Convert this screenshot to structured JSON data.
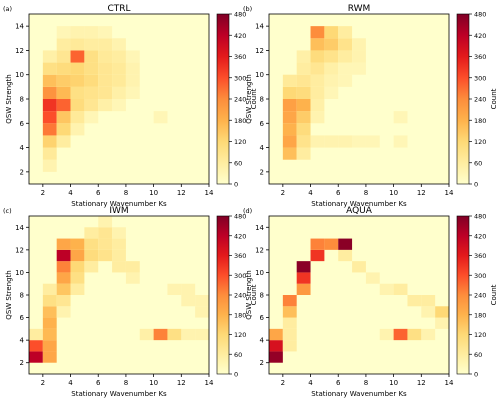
{
  "chart_data": [
    {
      "type": "heatmap",
      "panel_label": "(a)",
      "title": "CTRL",
      "xlabel": "Stationary Wavenumber Ks",
      "ylabel": "QSW Strength",
      "xticks": [
        2,
        4,
        6,
        8,
        10,
        12,
        14
      ],
      "yticks": [
        2,
        4,
        6,
        8,
        10,
        12,
        14
      ],
      "xlim": [
        1,
        14
      ],
      "ylim": [
        1,
        15
      ],
      "colorbar": {
        "label": "Count",
        "ticks": [
          0,
          60,
          120,
          180,
          240,
          300,
          360,
          420,
          480
        ],
        "range": [
          0,
          480
        ]
      },
      "cells": [
        {
          "x": 2,
          "y": 2,
          "v": 40
        },
        {
          "x": 2,
          "y": 3,
          "v": 70
        },
        {
          "x": 2,
          "y": 4,
          "v": 130
        },
        {
          "x": 3,
          "y": 4,
          "v": 60
        },
        {
          "x": 2,
          "y": 5,
          "v": 260
        },
        {
          "x": 3,
          "y": 5,
          "v": 120
        },
        {
          "x": 4,
          "y": 5,
          "v": 40
        },
        {
          "x": 2,
          "y": 6,
          "v": 300
        },
        {
          "x": 3,
          "y": 6,
          "v": 150
        },
        {
          "x": 4,
          "y": 6,
          "v": 70
        },
        {
          "x": 5,
          "y": 6,
          "v": 30
        },
        {
          "x": 2,
          "y": 7,
          "v": 330
        },
        {
          "x": 3,
          "y": 7,
          "v": 280
        },
        {
          "x": 4,
          "y": 7,
          "v": 110
        },
        {
          "x": 5,
          "y": 7,
          "v": 80
        },
        {
          "x": 6,
          "y": 7,
          "v": 50
        },
        {
          "x": 7,
          "y": 7,
          "v": 30
        },
        {
          "x": 10,
          "y": 6,
          "v": 30
        },
        {
          "x": 2,
          "y": 8,
          "v": 230
        },
        {
          "x": 3,
          "y": 8,
          "v": 170
        },
        {
          "x": 4,
          "y": 8,
          "v": 100
        },
        {
          "x": 5,
          "y": 8,
          "v": 90
        },
        {
          "x": 6,
          "y": 8,
          "v": 80
        },
        {
          "x": 7,
          "y": 8,
          "v": 50
        },
        {
          "x": 8,
          "y": 8,
          "v": 30
        },
        {
          "x": 2,
          "y": 9,
          "v": 160
        },
        {
          "x": 3,
          "y": 9,
          "v": 140
        },
        {
          "x": 4,
          "y": 9,
          "v": 130
        },
        {
          "x": 5,
          "y": 9,
          "v": 110
        },
        {
          "x": 6,
          "y": 9,
          "v": 80
        },
        {
          "x": 7,
          "y": 9,
          "v": 70
        },
        {
          "x": 8,
          "y": 9,
          "v": 40
        },
        {
          "x": 2,
          "y": 10,
          "v": 100
        },
        {
          "x": 3,
          "y": 10,
          "v": 110
        },
        {
          "x": 4,
          "y": 10,
          "v": 120
        },
        {
          "x": 5,
          "y": 10,
          "v": 100
        },
        {
          "x": 6,
          "y": 10,
          "v": 80
        },
        {
          "x": 7,
          "y": 10,
          "v": 70
        },
        {
          "x": 8,
          "y": 10,
          "v": 40
        },
        {
          "x": 2,
          "y": 11,
          "v": 50
        },
        {
          "x": 3,
          "y": 11,
          "v": 80
        },
        {
          "x": 4,
          "y": 11,
          "v": 280
        },
        {
          "x": 5,
          "y": 11,
          "v": 100
        },
        {
          "x": 6,
          "y": 11,
          "v": 70
        },
        {
          "x": 7,
          "y": 11,
          "v": 60
        },
        {
          "x": 8,
          "y": 11,
          "v": 30
        },
        {
          "x": 3,
          "y": 12,
          "v": 60
        },
        {
          "x": 4,
          "y": 12,
          "v": 70
        },
        {
          "x": 5,
          "y": 12,
          "v": 60
        },
        {
          "x": 6,
          "y": 12,
          "v": 60
        },
        {
          "x": 7,
          "y": 12,
          "v": 40
        },
        {
          "x": 3,
          "y": 13,
          "v": 30
        },
        {
          "x": 4,
          "y": 13,
          "v": 40
        },
        {
          "x": 5,
          "y": 13,
          "v": 40
        },
        {
          "x": 6,
          "y": 13,
          "v": 30
        }
      ]
    },
    {
      "type": "heatmap",
      "panel_label": "(b)",
      "title": "RWM",
      "xlabel": "Stationary Wavenumber Ks",
      "ylabel": "QSW Strength",
      "xticks": [
        2,
        4,
        6,
        8,
        10,
        12,
        14
      ],
      "yticks": [
        2,
        4,
        6,
        8,
        10,
        12,
        14
      ],
      "xlim": [
        1,
        14
      ],
      "ylim": [
        1,
        15
      ],
      "colorbar": {
        "label": "Count",
        "ticks": [
          0,
          60,
          120,
          180,
          240,
          300,
          360,
          420,
          480
        ],
        "range": [
          0,
          480
        ]
      },
      "cells": [
        {
          "x": 2,
          "y": 3,
          "v": 160
        },
        {
          "x": 3,
          "y": 3,
          "v": 60
        },
        {
          "x": 2,
          "y": 4,
          "v": 200
        },
        {
          "x": 3,
          "y": 4,
          "v": 90
        },
        {
          "x": 4,
          "y": 4,
          "v": 40
        },
        {
          "x": 5,
          "y": 4,
          "v": 40
        },
        {
          "x": 6,
          "y": 4,
          "v": 40
        },
        {
          "x": 7,
          "y": 4,
          "v": 30
        },
        {
          "x": 8,
          "y": 4,
          "v": 30
        },
        {
          "x": 10,
          "y": 4,
          "v": 30
        },
        {
          "x": 2,
          "y": 5,
          "v": 180
        },
        {
          "x": 3,
          "y": 5,
          "v": 110
        },
        {
          "x": 2,
          "y": 6,
          "v": 200
        },
        {
          "x": 3,
          "y": 6,
          "v": 140
        },
        {
          "x": 4,
          "y": 6,
          "v": 40
        },
        {
          "x": 10,
          "y": 6,
          "v": 30
        },
        {
          "x": 2,
          "y": 7,
          "v": 210
        },
        {
          "x": 3,
          "y": 7,
          "v": 180
        },
        {
          "x": 4,
          "y": 7,
          "v": 50
        },
        {
          "x": 2,
          "y": 8,
          "v": 120
        },
        {
          "x": 3,
          "y": 8,
          "v": 110
        },
        {
          "x": 4,
          "y": 8,
          "v": 60
        },
        {
          "x": 5,
          "y": 8,
          "v": 30
        },
        {
          "x": 2,
          "y": 9,
          "v": 70
        },
        {
          "x": 3,
          "y": 9,
          "v": 80
        },
        {
          "x": 4,
          "y": 9,
          "v": 60
        },
        {
          "x": 5,
          "y": 9,
          "v": 40
        },
        {
          "x": 6,
          "y": 9,
          "v": 30
        },
        {
          "x": 3,
          "y": 10,
          "v": 60
        },
        {
          "x": 4,
          "y": 10,
          "v": 80
        },
        {
          "x": 5,
          "y": 10,
          "v": 50
        },
        {
          "x": 6,
          "y": 10,
          "v": 30
        },
        {
          "x": 7,
          "y": 10,
          "v": 30
        },
        {
          "x": 3,
          "y": 11,
          "v": 50
        },
        {
          "x": 4,
          "y": 11,
          "v": 110
        },
        {
          "x": 5,
          "y": 11,
          "v": 90
        },
        {
          "x": 6,
          "y": 11,
          "v": 60
        },
        {
          "x": 7,
          "y": 11,
          "v": 40
        },
        {
          "x": 4,
          "y": 12,
          "v": 160
        },
        {
          "x": 5,
          "y": 12,
          "v": 140
        },
        {
          "x": 6,
          "y": 12,
          "v": 90
        },
        {
          "x": 7,
          "y": 12,
          "v": 40
        },
        {
          "x": 4,
          "y": 13,
          "v": 240
        },
        {
          "x": 5,
          "y": 13,
          "v": 120
        },
        {
          "x": 6,
          "y": 13,
          "v": 60
        }
      ]
    },
    {
      "type": "heatmap",
      "panel_label": "(c)",
      "title": "IWM",
      "xlabel": "Stationary Wavenumber Ks",
      "ylabel": "QSW Strength",
      "xticks": [
        2,
        4,
        6,
        8,
        10,
        12,
        14
      ],
      "yticks": [
        2,
        4,
        6,
        8,
        10,
        12,
        14
      ],
      "xlim": [
        1,
        14
      ],
      "ylim": [
        1,
        15
      ],
      "colorbar": {
        "label": "Count",
        "ticks": [
          0,
          60,
          120,
          180,
          240,
          300,
          360,
          420,
          480
        ],
        "range": [
          0,
          480
        ]
      },
      "cells": [
        {
          "x": 1,
          "y": 2,
          "v": 420
        },
        {
          "x": 2,
          "y": 2,
          "v": 200
        },
        {
          "x": 1,
          "y": 3,
          "v": 300
        },
        {
          "x": 2,
          "y": 3,
          "v": 200
        },
        {
          "x": 1,
          "y": 4,
          "v": 60
        },
        {
          "x": 2,
          "y": 4,
          "v": 170
        },
        {
          "x": 9,
          "y": 4,
          "v": 50
        },
        {
          "x": 10,
          "y": 4,
          "v": 250
        },
        {
          "x": 11,
          "y": 4,
          "v": 100
        },
        {
          "x": 12,
          "y": 4,
          "v": 40
        },
        {
          "x": 13,
          "y": 4,
          "v": 40
        },
        {
          "x": 2,
          "y": 5,
          "v": 180
        },
        {
          "x": 2,
          "y": 6,
          "v": 160
        },
        {
          "x": 3,
          "y": 6,
          "v": 40
        },
        {
          "x": 13,
          "y": 6,
          "v": 40
        },
        {
          "x": 2,
          "y": 7,
          "v": 100
        },
        {
          "x": 3,
          "y": 7,
          "v": 80
        },
        {
          "x": 12,
          "y": 7,
          "v": 40
        },
        {
          "x": 13,
          "y": 7,
          "v": 40
        },
        {
          "x": 2,
          "y": 8,
          "v": 60
        },
        {
          "x": 3,
          "y": 8,
          "v": 150
        },
        {
          "x": 4,
          "y": 8,
          "v": 60
        },
        {
          "x": 11,
          "y": 8,
          "v": 40
        },
        {
          "x": 12,
          "y": 8,
          "v": 40
        },
        {
          "x": 3,
          "y": 9,
          "v": 200
        },
        {
          "x": 4,
          "y": 9,
          "v": 100
        },
        {
          "x": 8,
          "y": 9,
          "v": 40
        },
        {
          "x": 3,
          "y": 10,
          "v": 250
        },
        {
          "x": 4,
          "y": 10,
          "v": 120
        },
        {
          "x": 5,
          "y": 10,
          "v": 60
        },
        {
          "x": 7,
          "y": 10,
          "v": 60
        },
        {
          "x": 8,
          "y": 10,
          "v": 60
        },
        {
          "x": 3,
          "y": 11,
          "v": 420
        },
        {
          "x": 4,
          "y": 11,
          "v": 200
        },
        {
          "x": 5,
          "y": 11,
          "v": 110
        },
        {
          "x": 6,
          "y": 11,
          "v": 90
        },
        {
          "x": 7,
          "y": 11,
          "v": 60
        },
        {
          "x": 3,
          "y": 12,
          "v": 200
        },
        {
          "x": 4,
          "y": 12,
          "v": 180
        },
        {
          "x": 5,
          "y": 12,
          "v": 100
        },
        {
          "x": 6,
          "y": 12,
          "v": 80
        },
        {
          "x": 7,
          "y": 12,
          "v": 60
        },
        {
          "x": 5,
          "y": 13,
          "v": 60
        },
        {
          "x": 6,
          "y": 13,
          "v": 80
        },
        {
          "x": 7,
          "y": 13,
          "v": 40
        },
        {
          "x": 6,
          "y": 14,
          "v": 40
        }
      ]
    },
    {
      "type": "heatmap",
      "panel_label": "(d)",
      "title": "AQUA",
      "xlabel": "Stationary Wavenumber Ks",
      "ylabel": "QSW Strength",
      "xticks": [
        2,
        4,
        6,
        8,
        10,
        12,
        14
      ],
      "yticks": [
        2,
        4,
        6,
        8,
        10,
        12,
        14
      ],
      "xlim": [
        1,
        14
      ],
      "ylim": [
        1,
        15
      ],
      "colorbar": {
        "label": "Count",
        "ticks": [
          0,
          60,
          120,
          180,
          240,
          300,
          360,
          420,
          480
        ],
        "range": [
          0,
          480
        ]
      },
      "cells": [
        {
          "x": 1,
          "y": 2,
          "v": 460
        },
        {
          "x": 1,
          "y": 3,
          "v": 380
        },
        {
          "x": 2,
          "y": 3,
          "v": 60
        },
        {
          "x": 1,
          "y": 4,
          "v": 200
        },
        {
          "x": 2,
          "y": 4,
          "v": 60
        },
        {
          "x": 9,
          "y": 4,
          "v": 40
        },
        {
          "x": 10,
          "y": 4,
          "v": 280
        },
        {
          "x": 11,
          "y": 4,
          "v": 100
        },
        {
          "x": 12,
          "y": 4,
          "v": 40
        },
        {
          "x": 2,
          "y": 5,
          "v": 60
        },
        {
          "x": 13,
          "y": 5,
          "v": 40
        },
        {
          "x": 2,
          "y": 6,
          "v": 160
        },
        {
          "x": 12,
          "y": 6,
          "v": 40
        },
        {
          "x": 13,
          "y": 6,
          "v": 120
        },
        {
          "x": 2,
          "y": 7,
          "v": 250
        },
        {
          "x": 11,
          "y": 7,
          "v": 60
        },
        {
          "x": 12,
          "y": 7,
          "v": 60
        },
        {
          "x": 3,
          "y": 8,
          "v": 220
        },
        {
          "x": 9,
          "y": 8,
          "v": 40
        },
        {
          "x": 10,
          "y": 8,
          "v": 60
        },
        {
          "x": 3,
          "y": 9,
          "v": 330
        },
        {
          "x": 8,
          "y": 9,
          "v": 40
        },
        {
          "x": 3,
          "y": 10,
          "v": 470
        },
        {
          "x": 7,
          "y": 10,
          "v": 60
        },
        {
          "x": 4,
          "y": 11,
          "v": 330
        },
        {
          "x": 6,
          "y": 11,
          "v": 60
        },
        {
          "x": 4,
          "y": 12,
          "v": 250
        },
        {
          "x": 5,
          "y": 12,
          "v": 240
        },
        {
          "x": 6,
          "y": 12,
          "v": 470
        }
      ]
    }
  ]
}
